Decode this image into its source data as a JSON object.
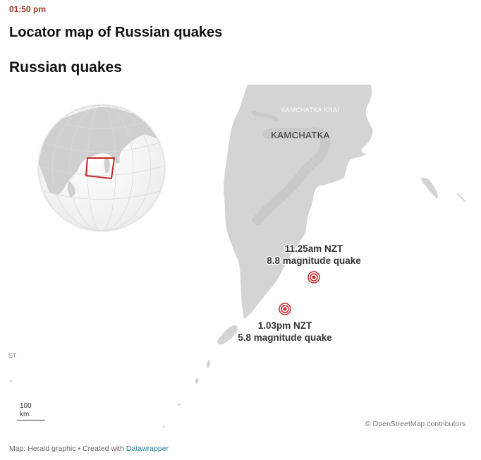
{
  "timestamp": "01:50 pm",
  "page_title": "Locator map of Russian quakes",
  "map_title": "Russian quakes",
  "labels": {
    "region": "KAMCHATKA KRAI",
    "peninsula": "KAMCHATKA",
    "edge": "ST"
  },
  "quakes": [
    {
      "time": "11.25am NZT",
      "description": "8.8 magnitude quake"
    },
    {
      "time": "1.03pm NZT",
      "description": "5.8 magnitude quake"
    }
  ],
  "scale": {
    "value": "100",
    "unit": "km"
  },
  "attribution": "© OpenStreetMap contributors",
  "footer": {
    "credit": "Map: Herald graphic • Created with ",
    "link_text": "Datawrapper"
  },
  "colors": {
    "land": "#d4d4d4",
    "water": "#ffffff",
    "marker": "#c62828",
    "timestamp": "#a3321e",
    "link": "#1d81a2"
  },
  "icons": {
    "quake_marker": "concentric-circle-marker"
  }
}
